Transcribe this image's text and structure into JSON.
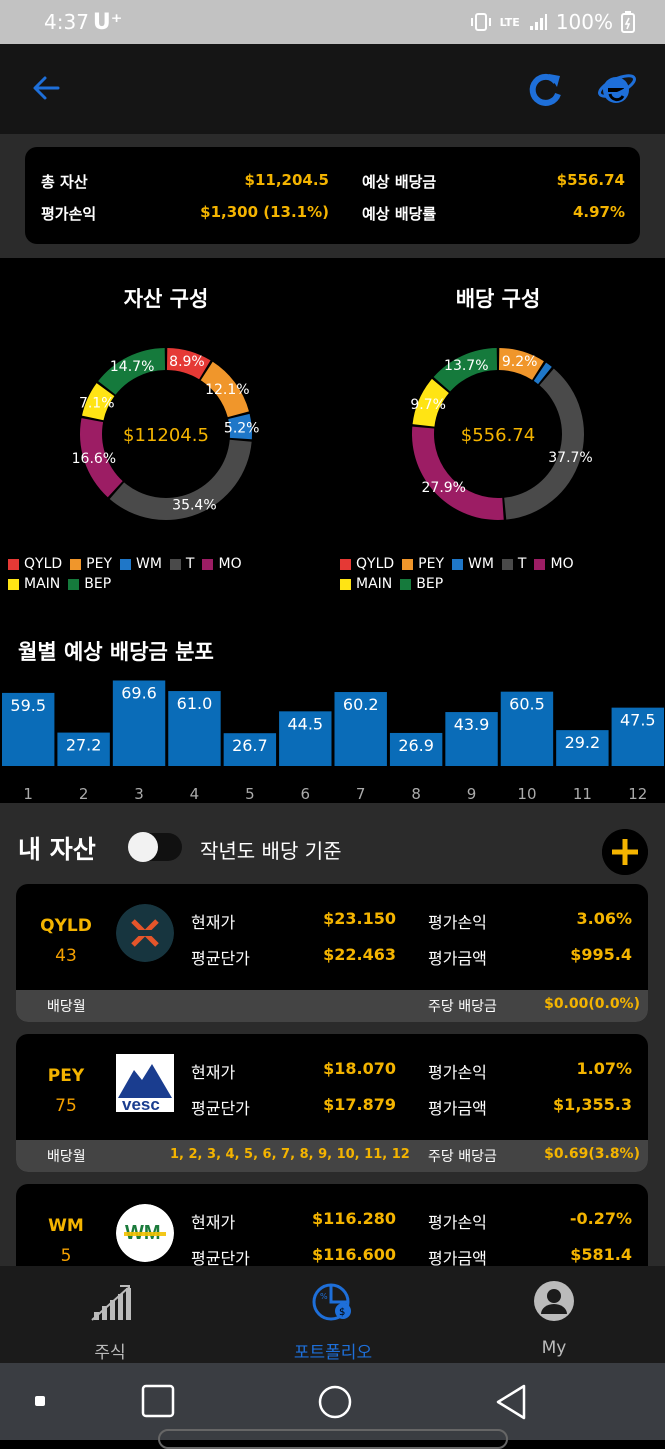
{
  "status_bar": {
    "time": "4:37",
    "carrier": "U⁺",
    "network": "LTE",
    "battery": "100%"
  },
  "summary": {
    "total_assets_label": "총 자산",
    "total_assets_value": "$11,204.5",
    "pnl_label": "평가손익",
    "pnl_value": "$1,300 (13.1%)",
    "expected_dividend_label": "예상 배당금",
    "expected_dividend_value": "$556.74",
    "expected_yield_label": "예상 배당률",
    "expected_yield_value": "4.97%"
  },
  "asset_chart": {
    "title": "자산 구성",
    "center_text": "$11204.5",
    "slices": [
      {
        "name": "QYLD",
        "value": 8.9,
        "label": "8.9%",
        "color": "#e53935"
      },
      {
        "name": "PEY",
        "value": 12.1,
        "label": "12.1%",
        "color": "#f0962b"
      },
      {
        "name": "WM",
        "value": 5.2,
        "label": "5.2%",
        "color": "#1f77c8"
      },
      {
        "name": "T",
        "value": 35.4,
        "label": "35.4%",
        "color": "#4a4a4a"
      },
      {
        "name": "MO",
        "value": 16.6,
        "label": "16.6%",
        "color": "#9c1d64"
      },
      {
        "name": "MAIN",
        "value": 7.1,
        "label": "7.1%",
        "color": "#ffe414"
      },
      {
        "name": "BEP",
        "value": 14.7,
        "label": "14.7%",
        "color": "#157a3c"
      }
    ]
  },
  "dividend_chart": {
    "title": "배당 구성",
    "center_text": "$556.74",
    "slices": [
      {
        "name": "QYLD",
        "value": 0,
        "label": "",
        "color": "#e53935"
      },
      {
        "name": "PEY",
        "value": 9.2,
        "label": "9.2%",
        "color": "#f0962b"
      },
      {
        "name": "WM",
        "value": 1.8,
        "label": "",
        "color": "#1f77c8"
      },
      {
        "name": "T",
        "value": 37.7,
        "label": "37.7%",
        "color": "#4a4a4a"
      },
      {
        "name": "MO",
        "value": 27.9,
        "label": "27.9%",
        "color": "#9c1d64"
      },
      {
        "name": "MAIN",
        "value": 9.7,
        "label": "9.7%",
        "color": "#ffe414"
      },
      {
        "name": "BEP",
        "value": 13.7,
        "label": "13.7%",
        "color": "#157a3c"
      }
    ]
  },
  "legend_items": [
    {
      "name": "QYLD",
      "color": "#e53935"
    },
    {
      "name": "PEY",
      "color": "#f0962b"
    },
    {
      "name": "WM",
      "color": "#1f77c8"
    },
    {
      "name": "T",
      "color": "#4a4a4a"
    },
    {
      "name": "MO",
      "color": "#9c1d64"
    },
    {
      "name": "MAIN",
      "color": "#ffe414"
    },
    {
      "name": "BEP",
      "color": "#157a3c"
    }
  ],
  "chart_data": {
    "type": "bar",
    "title": "월별 예상 배당금 분포",
    "categories": [
      "1",
      "2",
      "3",
      "4",
      "5",
      "6",
      "7",
      "8",
      "9",
      "10",
      "11",
      "12"
    ],
    "values": [
      59.5,
      27.2,
      69.6,
      61.0,
      26.7,
      44.5,
      60.2,
      26.9,
      43.9,
      60.5,
      29.2,
      47.5
    ],
    "value_labels": [
      "59.5",
      "27.2",
      "69.6",
      "61.0",
      "26.7",
      "44.5",
      "60.2",
      "26.9",
      "43.9",
      "60.5",
      "29.2",
      "47.5"
    ],
    "bar_color": "#0a6cb8",
    "ylim": [
      0,
      70
    ]
  },
  "my_assets": {
    "title": "내 자산",
    "toggle_label": "작년도 배당 기준",
    "toggle_on": false
  },
  "holdings": [
    {
      "ticker": "QYLD",
      "shares": "43",
      "current_price_label": "현재가",
      "current_price": "$23.150",
      "avg_price_label": "평균단가",
      "avg_price": "$22.463",
      "pnl_label": "평가손익",
      "pnl": "3.06%",
      "value_label": "평가금액",
      "value": "$995.4",
      "div_month_label": "배당월",
      "div_months": "",
      "dps_label": "주당 배당금",
      "dps": "$0.00(0.0%)"
    },
    {
      "ticker": "PEY",
      "shares": "75",
      "current_price_label": "현재가",
      "current_price": "$18.070",
      "avg_price_label": "평균단가",
      "avg_price": "$17.879",
      "pnl_label": "평가손익",
      "pnl": "1.07%",
      "value_label": "평가금액",
      "value": "$1,355.3",
      "div_month_label": "배당월",
      "div_months": "1, 2, 3, 4, 5, 6, 7, 8, 9, 10, 11, 12",
      "dps_label": "주당 배당금",
      "dps": "$0.69(3.8%)"
    },
    {
      "ticker": "WM",
      "shares": "5",
      "current_price_label": "현재가",
      "current_price": "$116.280",
      "avg_price_label": "평균단가",
      "avg_price": "$116.600",
      "pnl_label": "평가손익",
      "pnl": "-0.27%",
      "value_label": "평가금액",
      "value": "$581.4",
      "div_month_label": "",
      "div_months": "",
      "dps_label": "",
      "dps": ""
    }
  ],
  "logos": {
    "pey_text": "vesc",
    "wm_text": "WM"
  },
  "bottom_nav": {
    "stocks_label": "주식",
    "portfolio_label": "포트폴리오",
    "my_label": "My",
    "active_color": "#1e6fd9"
  }
}
